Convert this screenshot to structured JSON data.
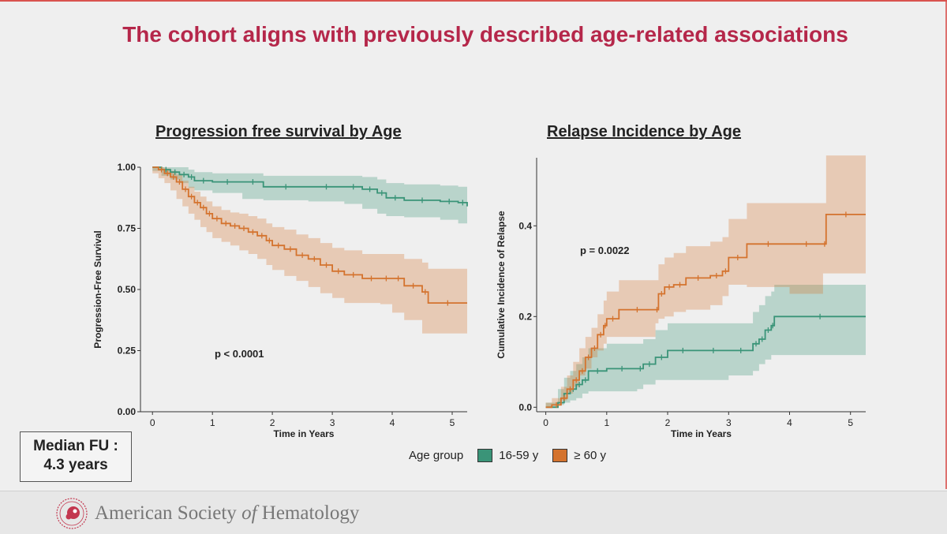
{
  "title": "The cohort aligns with previously described age-related associations",
  "median_fu": {
    "line1": "Median FU :",
    "line2": "4.3 years"
  },
  "legend": {
    "title": "Age group",
    "items": [
      {
        "label": "16-59 y",
        "color": "#3a9478"
      },
      {
        "label": "≥ 60 y",
        "color": "#d4732e"
      }
    ]
  },
  "footer": {
    "org_plain": "American Society ",
    "org_italic": "of",
    "org_end": " Hematology"
  },
  "chart_data": [
    {
      "type": "line",
      "title": "Progression free survival by Age",
      "xlabel": "Time in Years",
      "ylabel": "Progression-Free Survival",
      "xlim": [
        -0.2,
        5.25
      ],
      "ylim": [
        0,
        1
      ],
      "xticks": [
        0,
        1,
        2,
        3,
        4,
        5
      ],
      "yticks": [
        "0.00",
        "0.25",
        "0.50",
        "0.75",
        "1.00"
      ],
      "annotation": "p < 0.0001",
      "series": [
        {
          "name": "16-59 y",
          "color": "#3a9478",
          "x": [
            0,
            0.15,
            0.3,
            0.45,
            0.6,
            0.7,
            1.0,
            1.5,
            1.85,
            2.6,
            3.2,
            3.5,
            3.75,
            3.9,
            4.2,
            4.8,
            5.1,
            5.25
          ],
          "y": [
            1.0,
            0.99,
            0.98,
            0.97,
            0.96,
            0.945,
            0.94,
            0.94,
            0.92,
            0.92,
            0.92,
            0.91,
            0.895,
            0.875,
            0.865,
            0.86,
            0.855,
            0.84
          ],
          "lower": [
            1.0,
            0.985,
            0.965,
            0.95,
            0.935,
            0.915,
            0.905,
            0.895,
            0.87,
            0.865,
            0.86,
            0.85,
            0.83,
            0.81,
            0.8,
            0.795,
            0.785,
            0.77
          ],
          "upper": [
            1.0,
            1.0,
            1.0,
            1.0,
            0.99,
            0.98,
            0.975,
            0.975,
            0.965,
            0.965,
            0.965,
            0.96,
            0.95,
            0.935,
            0.93,
            0.925,
            0.92,
            0.91
          ]
        },
        {
          "name": "≥ 60 y",
          "color": "#d4732e",
          "x": [
            0,
            0.1,
            0.2,
            0.3,
            0.4,
            0.5,
            0.6,
            0.7,
            0.8,
            0.9,
            1.0,
            1.15,
            1.3,
            1.45,
            1.6,
            1.75,
            1.9,
            2.0,
            2.2,
            2.4,
            2.6,
            2.8,
            3.0,
            3.2,
            3.5,
            3.8,
            4.0,
            4.2,
            4.5,
            4.6,
            5.25
          ],
          "y": [
            1.0,
            0.99,
            0.975,
            0.96,
            0.94,
            0.91,
            0.88,
            0.855,
            0.835,
            0.81,
            0.79,
            0.77,
            0.76,
            0.75,
            0.735,
            0.72,
            0.7,
            0.68,
            0.665,
            0.64,
            0.625,
            0.6,
            0.575,
            0.56,
            0.545,
            0.545,
            0.545,
            0.515,
            0.49,
            0.445,
            0.445
          ],
          "lower": [
            1.0,
            0.975,
            0.955,
            0.935,
            0.905,
            0.87,
            0.84,
            0.81,
            0.785,
            0.755,
            0.735,
            0.71,
            0.695,
            0.68,
            0.66,
            0.645,
            0.625,
            0.6,
            0.58,
            0.555,
            0.535,
            0.51,
            0.485,
            0.465,
            0.445,
            0.445,
            0.44,
            0.405,
            0.375,
            0.32,
            0.32
          ],
          "upper": [
            1.0,
            1.0,
            0.995,
            0.985,
            0.97,
            0.945,
            0.92,
            0.9,
            0.88,
            0.86,
            0.84,
            0.825,
            0.815,
            0.81,
            0.8,
            0.79,
            0.77,
            0.755,
            0.745,
            0.725,
            0.71,
            0.69,
            0.67,
            0.66,
            0.645,
            0.645,
            0.645,
            0.625,
            0.61,
            0.585,
            0.615
          ]
        }
      ]
    },
    {
      "type": "line",
      "title": "Relapse Incidence by Age",
      "xlabel": "Time in Years",
      "ylabel": "Cumulative Incidence of Relapse",
      "xlim": [
        -0.15,
        5.25
      ],
      "ylim": [
        -0.01,
        0.55
      ],
      "xticks": [
        0,
        1,
        2,
        3,
        4,
        5
      ],
      "yticks": [
        "0.0",
        "0.2",
        "0.4"
      ],
      "annotation": "p = 0.0022",
      "series": [
        {
          "name": "16-59 y",
          "color": "#3a9478",
          "x": [
            0,
            0.2,
            0.3,
            0.4,
            0.5,
            0.6,
            0.7,
            1.0,
            1.5,
            1.6,
            1.8,
            2.0,
            2.5,
            3.0,
            3.4,
            3.5,
            3.6,
            3.7,
            3.75,
            5.25
          ],
          "y": [
            0,
            0.01,
            0.03,
            0.04,
            0.05,
            0.06,
            0.08,
            0.085,
            0.085,
            0.095,
            0.11,
            0.125,
            0.125,
            0.125,
            0.14,
            0.15,
            0.17,
            0.18,
            0.2,
            0.2
          ],
          "lower": [
            0,
            0,
            0.005,
            0.01,
            0.015,
            0.02,
            0.03,
            0.035,
            0.035,
            0.04,
            0.05,
            0.06,
            0.06,
            0.06,
            0.07,
            0.08,
            0.095,
            0.105,
            0.115,
            0.115
          ],
          "upper": [
            0.01,
            0.04,
            0.065,
            0.08,
            0.095,
            0.11,
            0.13,
            0.14,
            0.14,
            0.15,
            0.17,
            0.185,
            0.185,
            0.185,
            0.21,
            0.225,
            0.245,
            0.255,
            0.27,
            0.28
          ]
        },
        {
          "name": "≥ 60 y",
          "color": "#d4732e",
          "x": [
            0,
            0.1,
            0.25,
            0.35,
            0.45,
            0.55,
            0.65,
            0.75,
            0.85,
            0.95,
            1.0,
            1.2,
            1.8,
            1.85,
            1.95,
            2.1,
            2.3,
            2.7,
            2.9,
            3.0,
            3.3,
            4.0,
            4.55,
            4.6,
            5.25
          ],
          "y": [
            0,
            0.005,
            0.02,
            0.04,
            0.06,
            0.08,
            0.11,
            0.13,
            0.16,
            0.18,
            0.195,
            0.215,
            0.215,
            0.25,
            0.265,
            0.27,
            0.285,
            0.29,
            0.3,
            0.33,
            0.36,
            0.36,
            0.36,
            0.425,
            0.425
          ],
          "lower": [
            0,
            0,
            0.005,
            0.015,
            0.03,
            0.045,
            0.07,
            0.085,
            0.11,
            0.125,
            0.14,
            0.155,
            0.155,
            0.185,
            0.195,
            0.2,
            0.21,
            0.215,
            0.225,
            0.245,
            0.27,
            0.265,
            0.25,
            0.295,
            0.295
          ],
          "upper": [
            0.01,
            0.02,
            0.045,
            0.07,
            0.1,
            0.13,
            0.155,
            0.175,
            0.205,
            0.235,
            0.255,
            0.28,
            0.28,
            0.315,
            0.33,
            0.34,
            0.355,
            0.365,
            0.375,
            0.415,
            0.45,
            0.45,
            0.45,
            0.555,
            0.555
          ]
        }
      ]
    }
  ]
}
